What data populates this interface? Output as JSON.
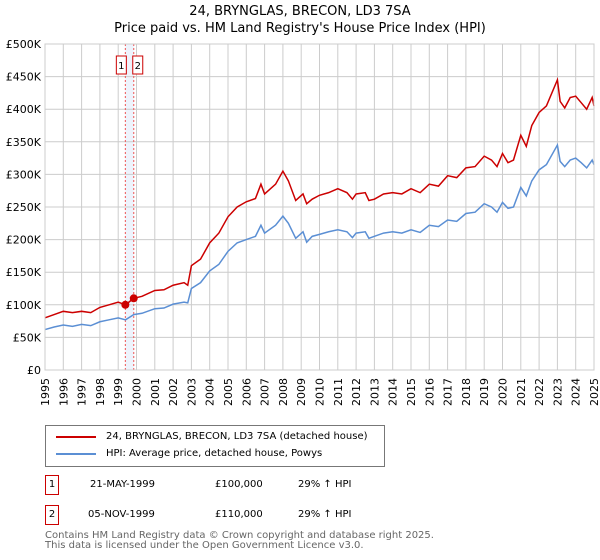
{
  "chart_data": {
    "type": "line",
    "title": "24, BRYNGLAS, BRECON, LD3 7SA",
    "subtitle": "Price paid vs. HM Land Registry's House Price Index (HPI)",
    "xlim": [
      1995,
      2025
    ],
    "ylim": [
      0,
      500000
    ],
    "x_ticks": [
      "1995",
      "1996",
      "1997",
      "1998",
      "1999",
      "2000",
      "2001",
      "2002",
      "2003",
      "2004",
      "2005",
      "2006",
      "2007",
      "2008",
      "2009",
      "2010",
      "2011",
      "2012",
      "2013",
      "2014",
      "2015",
      "2016",
      "2017",
      "2018",
      "2019",
      "2020",
      "2021",
      "2022",
      "2023",
      "2024",
      "2025"
    ],
    "y_ticks": [
      {
        "v": 0,
        "l": "£0"
      },
      {
        "v": 50000,
        "l": "£50K"
      },
      {
        "v": 100000,
        "l": "£100K"
      },
      {
        "v": 150000,
        "l": "£150K"
      },
      {
        "v": 200000,
        "l": "£200K"
      },
      {
        "v": 250000,
        "l": "£250K"
      },
      {
        "v": 300000,
        "l": "£300K"
      },
      {
        "v": 350000,
        "l": "£350K"
      },
      {
        "v": 400000,
        "l": "£400K"
      },
      {
        "v": 450000,
        "l": "£450K"
      },
      {
        "v": 500000,
        "l": "£500K"
      }
    ],
    "grid": true,
    "series": [
      {
        "name": "24, BRYNGLAS, BRECON, LD3 7SA (detached house)",
        "color": "#cc0000",
        "x": [
          1995,
          1995.5,
          1996,
          1996.5,
          1997,
          1997.5,
          1998,
          1998.5,
          1999,
          1999.4,
          1999.85,
          2000.3,
          2001,
          2001.5,
          2002,
          2002.6,
          2002.8,
          2003,
          2003.5,
          2004,
          2004.5,
          2005,
          2005.5,
          2006,
          2006.5,
          2006.8,
          2007,
          2007.6,
          2008,
          2008.3,
          2008.7,
          2009.1,
          2009.3,
          2009.6,
          2010,
          2010.5,
          2011,
          2011.5,
          2011.8,
          2012,
          2012.5,
          2012.7,
          2013,
          2013.5,
          2014,
          2014.5,
          2015,
          2015.5,
          2016,
          2016.5,
          2017,
          2017.5,
          2018,
          2018.5,
          2019,
          2019.4,
          2019.7,
          2020,
          2020.3,
          2020.6,
          2021,
          2021.3,
          2021.6,
          2022,
          2022.4,
          2023,
          2023.15,
          2023.4,
          2023.7,
          2024,
          2024.3,
          2024.6,
          2024.9,
          2025
        ],
        "y": [
          80000,
          85000,
          90000,
          88000,
          90000,
          88000,
          96000,
          100000,
          104000,
          100000,
          110000,
          113000,
          122000,
          123000,
          130000,
          134000,
          130000,
          160000,
          170000,
          195000,
          210000,
          235000,
          250000,
          258000,
          263000,
          285000,
          270000,
          285000,
          305000,
          290000,
          260000,
          270000,
          255000,
          262000,
          268000,
          272000,
          278000,
          272000,
          262000,
          270000,
          272000,
          260000,
          262000,
          270000,
          272000,
          270000,
          278000,
          272000,
          285000,
          282000,
          298000,
          295000,
          310000,
          312000,
          328000,
          322000,
          312000,
          332000,
          318000,
          322000,
          360000,
          343000,
          375000,
          395000,
          405000,
          445000,
          412000,
          402000,
          418000,
          420000,
          410000,
          400000,
          418000,
          405000
        ]
      },
      {
        "name": "HPI: Average price, detached house, Powys",
        "color": "#5b8fd4",
        "x": [
          1995,
          1995.5,
          1996,
          1996.5,
          1997,
          1997.5,
          1998,
          1998.5,
          1999,
          1999.4,
          1999.85,
          2000.3,
          2001,
          2001.5,
          2002,
          2002.6,
          2002.8,
          2003,
          2003.5,
          2004,
          2004.5,
          2005,
          2005.5,
          2006,
          2006.5,
          2006.8,
          2007,
          2007.6,
          2008,
          2008.3,
          2008.7,
          2009.1,
          2009.3,
          2009.6,
          2010,
          2010.5,
          2011,
          2011.5,
          2011.8,
          2012,
          2012.5,
          2012.7,
          2013,
          2013.5,
          2014,
          2014.5,
          2015,
          2015.5,
          2016,
          2016.5,
          2017,
          2017.5,
          2018,
          2018.5,
          2019,
          2019.4,
          2019.7,
          2020,
          2020.3,
          2020.6,
          2021,
          2021.3,
          2021.6,
          2022,
          2022.4,
          2023,
          2023.15,
          2023.4,
          2023.7,
          2024,
          2024.3,
          2024.6,
          2024.9,
          2025
        ],
        "y": [
          62000,
          66000,
          69000,
          67000,
          70000,
          68000,
          74000,
          77000,
          80000,
          77000,
          85000,
          87000,
          94000,
          95000,
          101000,
          104000,
          103000,
          125000,
          134000,
          152000,
          162000,
          182000,
          195000,
          200000,
          205000,
          222000,
          210000,
          222000,
          236000,
          225000,
          202000,
          212000,
          196000,
          205000,
          208000,
          212000,
          215000,
          212000,
          203000,
          210000,
          212000,
          202000,
          205000,
          210000,
          212000,
          210000,
          215000,
          211000,
          222000,
          220000,
          230000,
          228000,
          240000,
          242000,
          255000,
          250000,
          242000,
          257000,
          248000,
          250000,
          280000,
          267000,
          290000,
          307000,
          315000,
          345000,
          320000,
          312000,
          322000,
          325000,
          318000,
          310000,
          322000,
          315000
        ]
      }
    ],
    "annotations": [
      {
        "label": "1",
        "x": 1999.39
      },
      {
        "label": "2",
        "x": 1999.85
      }
    ],
    "sales": [
      {
        "label": "1",
        "x": 1999.39,
        "y": 100000
      },
      {
        "label": "2",
        "x": 1999.85,
        "y": 110000
      }
    ]
  },
  "table": [
    {
      "num": "1",
      "date": "21-MAY-1999",
      "price": "£100,000",
      "hpi": "29% ↑ HPI"
    },
    {
      "num": "2",
      "date": "05-NOV-1999",
      "price": "£110,000",
      "hpi": "29% ↑ HPI"
    }
  ],
  "footer": {
    "line1": "Contains HM Land Registry data © Crown copyright and database right 2025.",
    "line2": "This data is licensed under the Open Government Licence v3.0."
  }
}
